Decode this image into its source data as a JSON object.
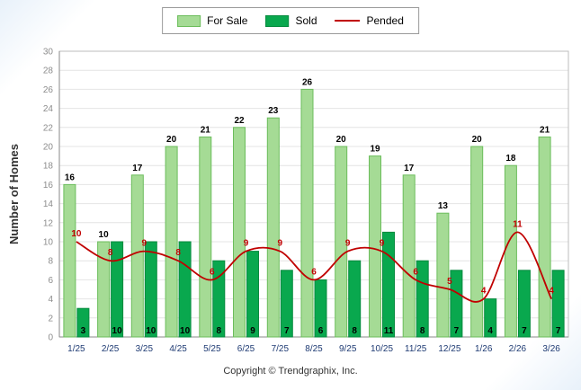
{
  "legend": {
    "for_sale": "For Sale",
    "sold": "Sold",
    "pended": "Pended"
  },
  "ylabel": "Number of Homes",
  "footer": "Copyright © Trendgraphix, Inc.",
  "colors": {
    "for_sale_fill": "#a5db95",
    "for_sale_border": "#6cbd5c",
    "sold_fill": "#09a84e",
    "sold_border": "#068a3e",
    "pended_line": "#c00000"
  },
  "chart_data": {
    "type": "bar",
    "subtype": "grouped bars with overlaid line",
    "categories": [
      "1/25",
      "2/25",
      "3/25",
      "4/25",
      "5/25",
      "6/25",
      "7/25",
      "8/25",
      "9/25",
      "10/25",
      "11/25",
      "12/25",
      "1/26",
      "2/26",
      "3/26"
    ],
    "series": [
      {
        "name": "For Sale",
        "type": "bar",
        "color": "#a5db95",
        "border": "#6cbd5c",
        "values": [
          16,
          10,
          17,
          20,
          21,
          22,
          23,
          26,
          20,
          19,
          17,
          13,
          20,
          18,
          21
        ]
      },
      {
        "name": "Sold",
        "type": "bar",
        "color": "#09a84e",
        "border": "#068a3e",
        "values": [
          3,
          10,
          10,
          10,
          8,
          9,
          7,
          6,
          8,
          11,
          8,
          7,
          4,
          7,
          7
        ]
      },
      {
        "name": "Pended",
        "type": "line",
        "color": "#c00000",
        "values": [
          10,
          8,
          9,
          8,
          6,
          9,
          9,
          6,
          9,
          9,
          6,
          5,
          4,
          11,
          4
        ]
      }
    ],
    "title": "",
    "xlabel": "",
    "ylabel": "Number of Homes",
    "ylim": [
      0,
      30
    ],
    "ytick_step": 2,
    "grid": true,
    "legend_position": "top center"
  }
}
